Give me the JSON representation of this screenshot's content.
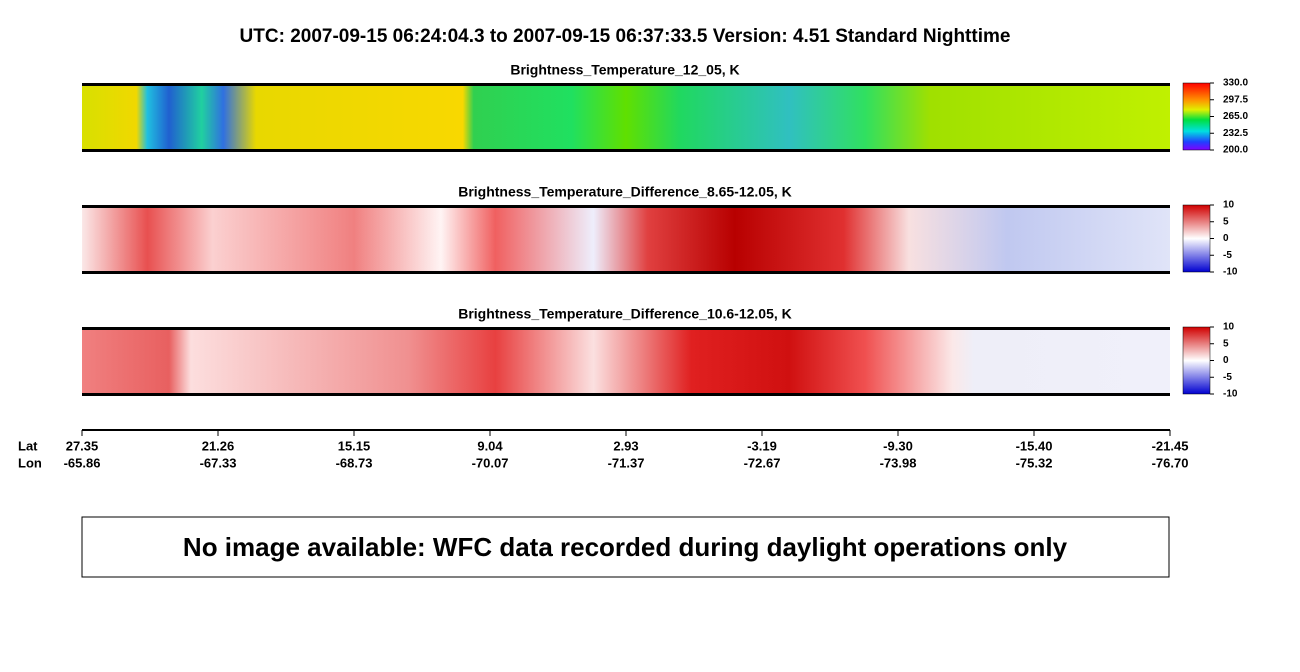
{
  "title": "UTC:  2007-09-15   06:24:04.3  to  2007-09-15   06:37:33.5    Version: 4.51  Standard Nighttime",
  "panels": [
    {
      "title": "Brightness_Temperature_12_05, K",
      "clim": [
        200,
        330
      ],
      "colorbar_ticks": [
        {
          "value": 330,
          "label": "330.0"
        },
        {
          "value": 297.5,
          "label": "297.5"
        },
        {
          "value": 265,
          "label": "265.0"
        },
        {
          "value": 232.5,
          "label": "232.5"
        },
        {
          "value": 200,
          "label": "200.0"
        }
      ]
    },
    {
      "title": "Brightness_Temperature_Difference_8.65-12.05, K",
      "clim": [
        -10,
        10
      ],
      "colorbar_ticks": [
        10,
        5,
        0,
        -5,
        -10
      ]
    },
    {
      "title": "Brightness_Temperature_Difference_10.6-12.05, K",
      "clim": [
        -10,
        10
      ],
      "colorbar_ticks": [
        10,
        5,
        0,
        -5,
        -10
      ]
    }
  ],
  "axis": {
    "lat_label": "Lat",
    "lon_label": "Lon",
    "ticks": [
      {
        "lat": "27.35",
        "lon": "-65.86"
      },
      {
        "lat": "21.26",
        "lon": "-67.33"
      },
      {
        "lat": "15.15",
        "lon": "-68.73"
      },
      {
        "lat": "9.04",
        "lon": "-70.07"
      },
      {
        "lat": "2.93",
        "lon": "-71.37"
      },
      {
        "lat": "-3.19",
        "lon": "-72.67"
      },
      {
        "lat": "-9.30",
        "lon": "-73.98"
      },
      {
        "lat": "-15.40",
        "lon": "-75.32"
      },
      {
        "lat": "-21.45",
        "lon": "-76.70"
      }
    ]
  },
  "notice": "No image available: WFC data recorded during daylight operations only"
}
